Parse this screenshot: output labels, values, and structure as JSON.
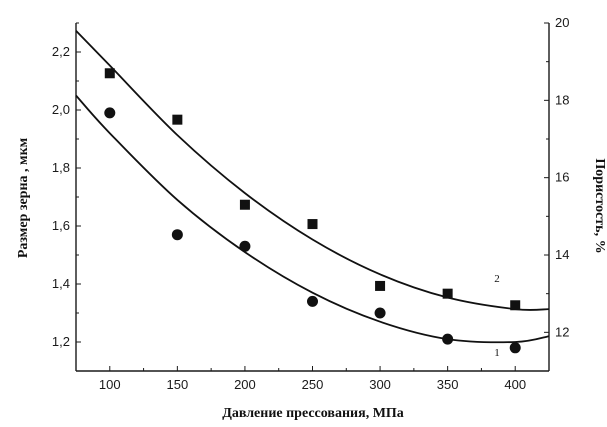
{
  "chart_data": {
    "type": "scatter",
    "title": "",
    "xlabel": "Давление прессования, МПа",
    "ylabel": "Размер зерна , мкм",
    "y2label": "Пористость, %",
    "xlim": [
      75,
      425
    ],
    "ylim": [
      1.1,
      2.3
    ],
    "y2lim": [
      11,
      20
    ],
    "x_ticks": [
      100,
      150,
      200,
      250,
      300,
      350,
      400
    ],
    "y_ticks": [
      1.2,
      1.4,
      1.6,
      1.8,
      2.0,
      2.2
    ],
    "y_tick_labels": [
      "1,2",
      "1,4",
      "1,6",
      "1,8",
      "2,0",
      "2,2"
    ],
    "y2_ticks": [
      12,
      14,
      16,
      18,
      20
    ],
    "grid": false,
    "legend": "none",
    "series": [
      {
        "label": "1",
        "marker": "circle",
        "axis": "left",
        "x": [
          100,
          150,
          200,
          250,
          300,
          350,
          400
        ],
        "y": [
          1.99,
          1.57,
          1.53,
          1.34,
          1.3,
          1.21,
          1.18
        ],
        "fit": {
          "x": [
            75,
            100,
            150,
            200,
            250,
            300,
            350,
            400,
            425
          ],
          "y": [
            2.05,
            1.92,
            1.69,
            1.51,
            1.37,
            1.27,
            1.21,
            1.2,
            1.22
          ]
        }
      },
      {
        "label": "2",
        "marker": "square",
        "axis": "right",
        "x": [
          100,
          150,
          200,
          250,
          300,
          350,
          400
        ],
        "y": [
          18.7,
          17.5,
          15.3,
          14.8,
          13.2,
          13.0,
          12.7
        ],
        "fit": {
          "x": [
            75,
            100,
            150,
            200,
            250,
            300,
            350,
            400,
            425
          ],
          "y": [
            19.8,
            18.9,
            17.1,
            15.6,
            14.4,
            13.5,
            12.9,
            12.6,
            12.6
          ]
        }
      }
    ],
    "colors": {
      "marks": "#111111",
      "axis": "#1a1a1a"
    }
  }
}
